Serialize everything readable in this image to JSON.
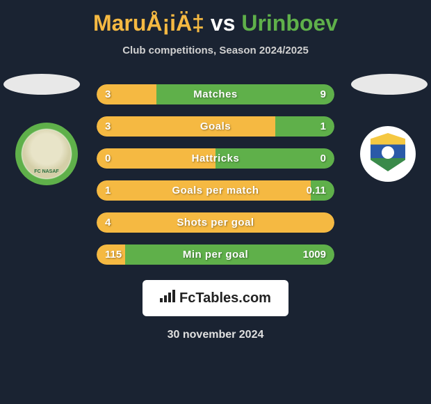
{
  "title": {
    "left_name": "MaruÅ¡iÄ‡",
    "vs": "vs",
    "right_name": "Urinboev"
  },
  "subtitle": "Club competitions, Season 2024/2025",
  "colors": {
    "orange": "#f5b942",
    "green": "#5fb04a",
    "bar_track": "#2a3645",
    "background": "#1a2332"
  },
  "logos": {
    "left_text": "FC NASAF"
  },
  "stats": [
    {
      "label": "Matches",
      "left_val": "3",
      "right_val": "9",
      "left_pct": 25,
      "right_pct": 75,
      "left_full": false
    },
    {
      "label": "Goals",
      "left_val": "3",
      "right_val": "1",
      "left_pct": 75,
      "right_pct": 25,
      "left_full": false
    },
    {
      "label": "Hattricks",
      "left_val": "0",
      "right_val": "0",
      "left_pct": 50,
      "right_pct": 50,
      "left_full": false
    },
    {
      "label": "Goals per match",
      "left_val": "1",
      "right_val": "0.11",
      "left_pct": 90,
      "right_pct": 10,
      "left_full": false
    },
    {
      "label": "Shots per goal",
      "left_val": "4",
      "right_val": "",
      "left_pct": 100,
      "right_pct": 0,
      "left_full": true
    },
    {
      "label": "Min per goal",
      "left_val": "115",
      "right_val": "1009",
      "left_pct": 12,
      "right_pct": 88,
      "left_full": false
    }
  ],
  "footer": {
    "brand": "FcTables.com",
    "date": "30 november 2024"
  }
}
